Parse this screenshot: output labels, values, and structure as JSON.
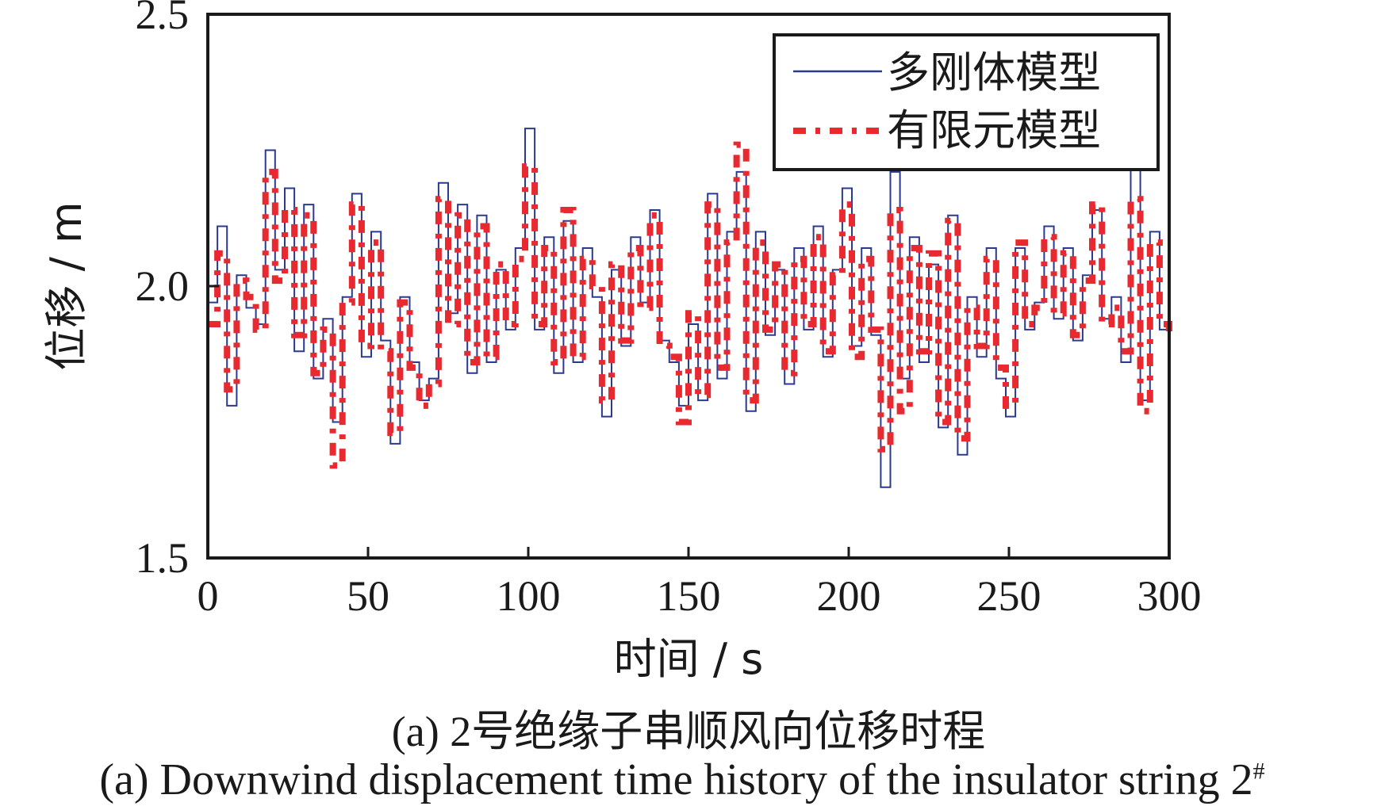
{
  "chart_data": {
    "type": "line",
    "xlabel": "时间 / s",
    "ylabel": "位移 / m",
    "xlim": [
      0,
      300
    ],
    "ylim": [
      1.5,
      2.5
    ],
    "x_ticks": [
      "0",
      "50",
      "100",
      "150",
      "200",
      "250",
      "300"
    ],
    "y_ticks": [
      "1.5",
      "2.0",
      "2.5"
    ],
    "grid": false,
    "legend_position": "top-right",
    "series": [
      {
        "name": "多刚体模型",
        "style": "solid",
        "color": "#2b3a8f",
        "x": [
          0,
          3,
          6,
          9,
          12,
          15,
          18,
          21,
          24,
          27,
          30,
          33,
          36,
          39,
          42,
          45,
          48,
          51,
          54,
          57,
          60,
          63,
          66,
          69,
          72,
          75,
          78,
          81,
          84,
          87,
          90,
          93,
          96,
          99,
          102,
          105,
          108,
          111,
          114,
          117,
          120,
          123,
          126,
          129,
          132,
          135,
          138,
          141,
          144,
          147,
          150,
          153,
          156,
          159,
          162,
          165,
          168,
          171,
          174,
          177,
          180,
          183,
          186,
          189,
          192,
          195,
          198,
          201,
          204,
          207,
          210,
          213,
          216,
          219,
          222,
          225,
          228,
          231,
          234,
          237,
          240,
          243,
          246,
          249,
          252,
          255,
          258,
          261,
          264,
          267,
          270,
          273,
          276,
          279,
          282,
          285,
          288,
          291,
          294,
          297,
          300
        ],
        "y": [
          1.97,
          2.11,
          1.78,
          2.02,
          1.96,
          1.93,
          2.25,
          2.03,
          2.18,
          1.88,
          2.15,
          1.83,
          1.94,
          1.75,
          1.98,
          2.17,
          1.87,
          2.1,
          1.9,
          1.71,
          1.98,
          1.86,
          1.79,
          1.83,
          2.19,
          1.95,
          2.15,
          1.84,
          2.13,
          1.86,
          2.03,
          1.92,
          2.07,
          2.29,
          1.92,
          2.09,
          1.84,
          2.12,
          1.86,
          2.07,
          1.98,
          1.76,
          2.03,
          1.89,
          2.09,
          1.97,
          2.14,
          1.9,
          1.86,
          1.78,
          1.93,
          1.79,
          2.17,
          1.83,
          2.1,
          2.21,
          1.77,
          2.1,
          1.91,
          2.03,
          1.82,
          2.07,
          1.92,
          2.11,
          1.87,
          2.03,
          2.18,
          1.89,
          2.07,
          1.91,
          1.63,
          2.21,
          1.83,
          2.09,
          1.86,
          2.04,
          1.74,
          2.13,
          1.69,
          1.98,
          1.87,
          2.07,
          1.83,
          1.76,
          2.07,
          1.92,
          1.97,
          2.11,
          1.94,
          2.07,
          1.9,
          2.02,
          2.14,
          1.94,
          1.98,
          1.86,
          2.22,
          1.79,
          2.1,
          1.92,
          1.85
        ]
      },
      {
        "name": "有限元模型",
        "style": "dash-dot",
        "color": "#e8292f",
        "x": [
          0,
          3,
          6,
          9,
          12,
          15,
          18,
          21,
          24,
          27,
          30,
          33,
          36,
          39,
          42,
          45,
          48,
          51,
          54,
          57,
          60,
          63,
          66,
          69,
          72,
          75,
          78,
          81,
          84,
          87,
          90,
          93,
          96,
          99,
          102,
          105,
          108,
          111,
          114,
          117,
          120,
          123,
          126,
          129,
          132,
          135,
          138,
          141,
          144,
          147,
          150,
          153,
          156,
          159,
          162,
          165,
          168,
          171,
          174,
          177,
          180,
          183,
          186,
          189,
          192,
          195,
          198,
          201,
          204,
          207,
          210,
          213,
          216,
          219,
          222,
          225,
          228,
          231,
          234,
          237,
          240,
          243,
          246,
          249,
          252,
          255,
          258,
          261,
          264,
          267,
          270,
          273,
          276,
          279,
          282,
          285,
          288,
          291,
          294,
          297,
          300
        ],
        "y": [
          1.93,
          2.06,
          1.81,
          2.01,
          1.98,
          1.92,
          2.21,
          2.01,
          2.14,
          1.91,
          2.13,
          1.84,
          1.92,
          1.67,
          1.97,
          2.15,
          1.89,
          2.08,
          1.88,
          1.73,
          1.97,
          1.85,
          1.78,
          1.82,
          2.16,
          1.93,
          2.13,
          1.86,
          2.11,
          1.87,
          2.04,
          1.93,
          2.05,
          2.22,
          1.93,
          2.07,
          1.86,
          2.14,
          1.87,
          2.05,
          2.0,
          1.79,
          2.04,
          1.9,
          2.07,
          1.96,
          2.13,
          1.89,
          1.87,
          1.75,
          1.95,
          1.8,
          2.15,
          1.85,
          2.08,
          2.26,
          1.79,
          2.08,
          1.92,
          2.04,
          1.84,
          2.05,
          1.93,
          2.09,
          1.88,
          2.02,
          2.15,
          1.87,
          2.05,
          1.92,
          1.7,
          2.14,
          1.77,
          2.07,
          1.88,
          2.06,
          1.75,
          2.12,
          1.72,
          1.96,
          1.89,
          2.05,
          1.85,
          1.78,
          2.08,
          1.93,
          1.96,
          2.09,
          1.95,
          2.06,
          1.91,
          2.01,
          2.15,
          1.93,
          1.96,
          1.88,
          2.16,
          1.77,
          2.08,
          1.93,
          1.9
        ]
      }
    ]
  },
  "caption": {
    "zh": "(a) 2号绝缘子串顺风向位移时程",
    "en": "(a) Downwind displacement time history of the insulator string 2",
    "en_superscript": "#"
  }
}
